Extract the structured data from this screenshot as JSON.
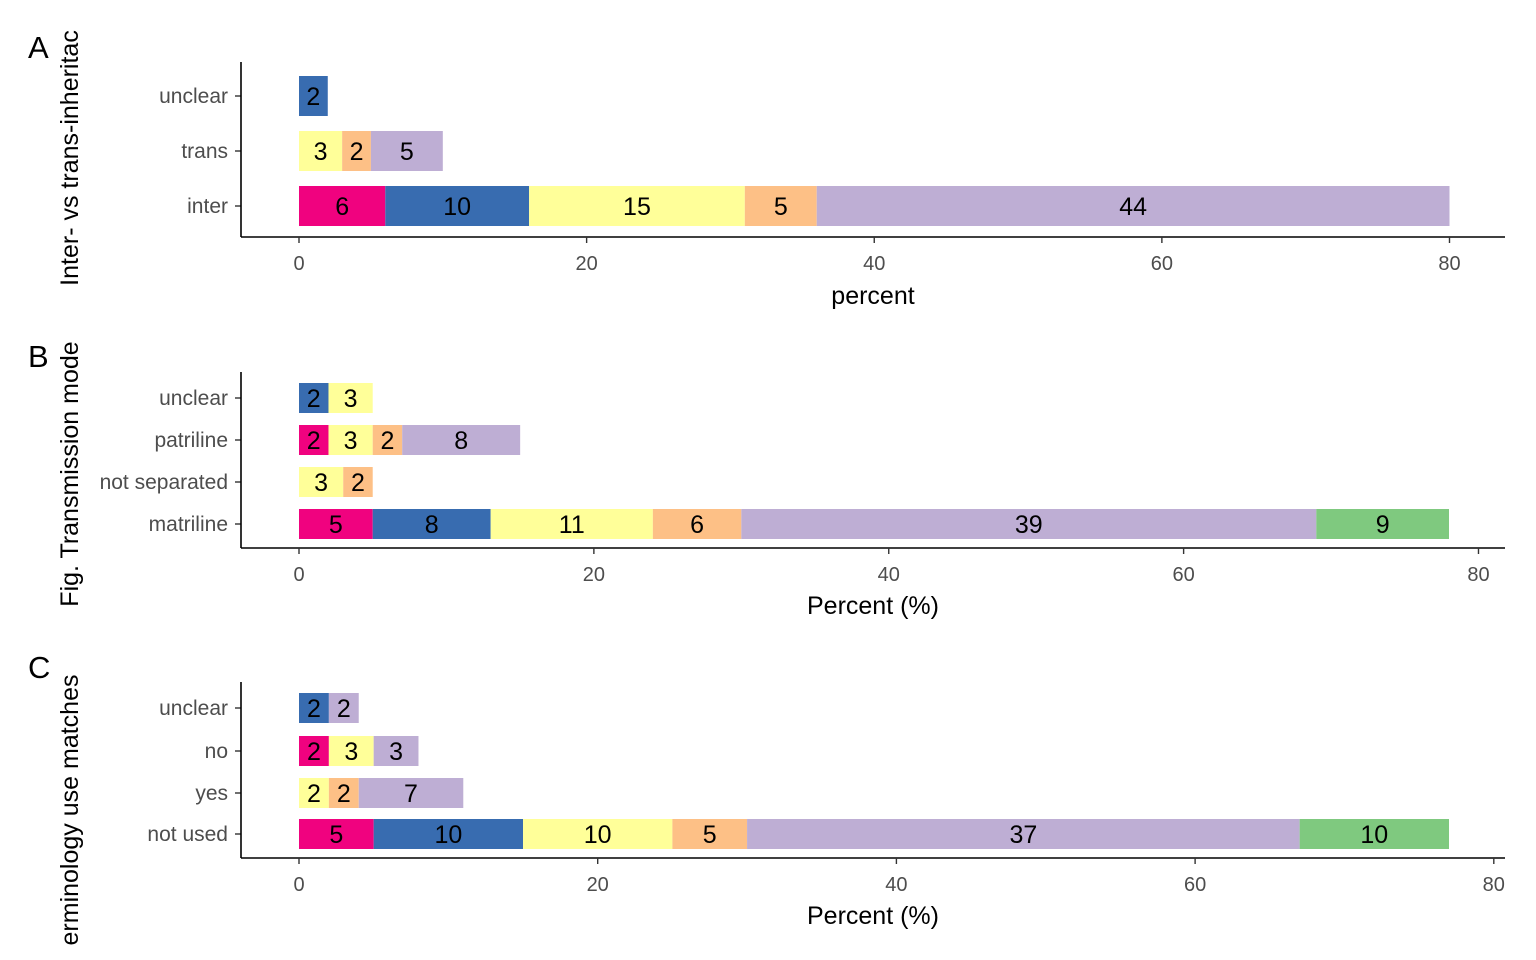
{
  "palette": [
    "#f0027f",
    "#386cb0",
    "#ffff99",
    "#fdc086",
    "#beaed4",
    "#7fc97f"
  ],
  "chart_data": [
    {
      "type": "bar",
      "orientation": "horizontal",
      "stacked": true,
      "panel_label": "A",
      "y_title": "Inter- vs trans-inheritac",
      "xlabel": "percent",
      "xlim": [
        0,
        80
      ],
      "x_ticks": [
        0,
        20,
        40,
        60,
        80
      ],
      "categories": [
        "inter",
        "trans",
        "unclear"
      ],
      "rows": [
        {
          "category": "inter",
          "segments": [
            {
              "color_index": 0,
              "value": 6,
              "label": "6"
            },
            {
              "color_index": 1,
              "value": 10,
              "label": "10"
            },
            {
              "color_index": 2,
              "value": 15,
              "label": "15"
            },
            {
              "color_index": 3,
              "value": 5,
              "label": "5"
            },
            {
              "color_index": 4,
              "value": 44,
              "label": "44"
            }
          ]
        },
        {
          "category": "trans",
          "segments": [
            {
              "color_index": 2,
              "value": 3,
              "label": "3"
            },
            {
              "color_index": 3,
              "value": 2,
              "label": "2"
            },
            {
              "color_index": 4,
              "value": 5,
              "label": "5"
            }
          ]
        },
        {
          "category": "unclear",
          "segments": [
            {
              "color_index": 1,
              "value": 2,
              "label": "2"
            }
          ]
        }
      ],
      "grid": false
    },
    {
      "type": "bar",
      "orientation": "horizontal",
      "stacked": true,
      "panel_label": "B",
      "y_title": "Fig. Transmission mode",
      "xlabel": "Percent (%)",
      "xlim": [
        0,
        78
      ],
      "x_ticks": [
        0,
        20,
        40,
        60,
        80
      ],
      "categories": [
        "matriline",
        "not separated",
        "patriline",
        "unclear"
      ],
      "rows": [
        {
          "category": "matriline",
          "segments": [
            {
              "color_index": 0,
              "value": 5,
              "label": "5"
            },
            {
              "color_index": 1,
              "value": 8,
              "label": "8"
            },
            {
              "color_index": 2,
              "value": 11,
              "label": "11"
            },
            {
              "color_index": 3,
              "value": 6,
              "label": "6"
            },
            {
              "color_index": 4,
              "value": 39,
              "label": "39"
            },
            {
              "color_index": 5,
              "value": 9,
              "label": "9"
            }
          ]
        },
        {
          "category": "not separated",
          "segments": [
            {
              "color_index": 2,
              "value": 3,
              "label": "3"
            },
            {
              "color_index": 3,
              "value": 2,
              "label": "2"
            }
          ]
        },
        {
          "category": "patriline",
          "segments": [
            {
              "color_index": 0,
              "value": 2,
              "label": "2"
            },
            {
              "color_index": 2,
              "value": 3,
              "label": "3"
            },
            {
              "color_index": 3,
              "value": 2,
              "label": "2"
            },
            {
              "color_index": 4,
              "value": 8,
              "label": "8"
            }
          ]
        },
        {
          "category": "unclear",
          "segments": [
            {
              "color_index": 1,
              "value": 2,
              "label": "2"
            },
            {
              "color_index": 2,
              "value": 3,
              "label": "3"
            }
          ]
        }
      ],
      "grid": false
    },
    {
      "type": "bar",
      "orientation": "horizontal",
      "stacked": true,
      "panel_label": "C",
      "y_title": "erminology use matches",
      "xlabel": "Percent (%)",
      "xlim": [
        0,
        77
      ],
      "x_ticks": [
        0,
        20,
        40,
        60,
        80
      ],
      "categories": [
        "not used",
        "yes",
        "no",
        "unclear"
      ],
      "rows": [
        {
          "category": "not used",
          "segments": [
            {
              "color_index": 0,
              "value": 5,
              "label": "5"
            },
            {
              "color_index": 1,
              "value": 10,
              "label": "10"
            },
            {
              "color_index": 2,
              "value": 10,
              "label": "10"
            },
            {
              "color_index": 3,
              "value": 5,
              "label": "5"
            },
            {
              "color_index": 4,
              "value": 37,
              "label": "37"
            },
            {
              "color_index": 5,
              "value": 10,
              "label": "10"
            }
          ]
        },
        {
          "category": "yes",
          "segments": [
            {
              "color_index": 2,
              "value": 2,
              "label": "2"
            },
            {
              "color_index": 3,
              "value": 2,
              "label": "2"
            },
            {
              "color_index": 4,
              "value": 7,
              "label": "7"
            }
          ]
        },
        {
          "category": "no",
          "segments": [
            {
              "color_index": 0,
              "value": 2,
              "label": "2"
            },
            {
              "color_index": 2,
              "value": 3,
              "label": "3"
            },
            {
              "color_index": 4,
              "value": 3,
              "label": "3"
            }
          ]
        },
        {
          "category": "unclear",
          "segments": [
            {
              "color_index": 1,
              "value": 2,
              "label": "2"
            },
            {
              "color_index": 4,
              "value": 2,
              "label": "2"
            }
          ]
        }
      ],
      "grid": false
    }
  ]
}
